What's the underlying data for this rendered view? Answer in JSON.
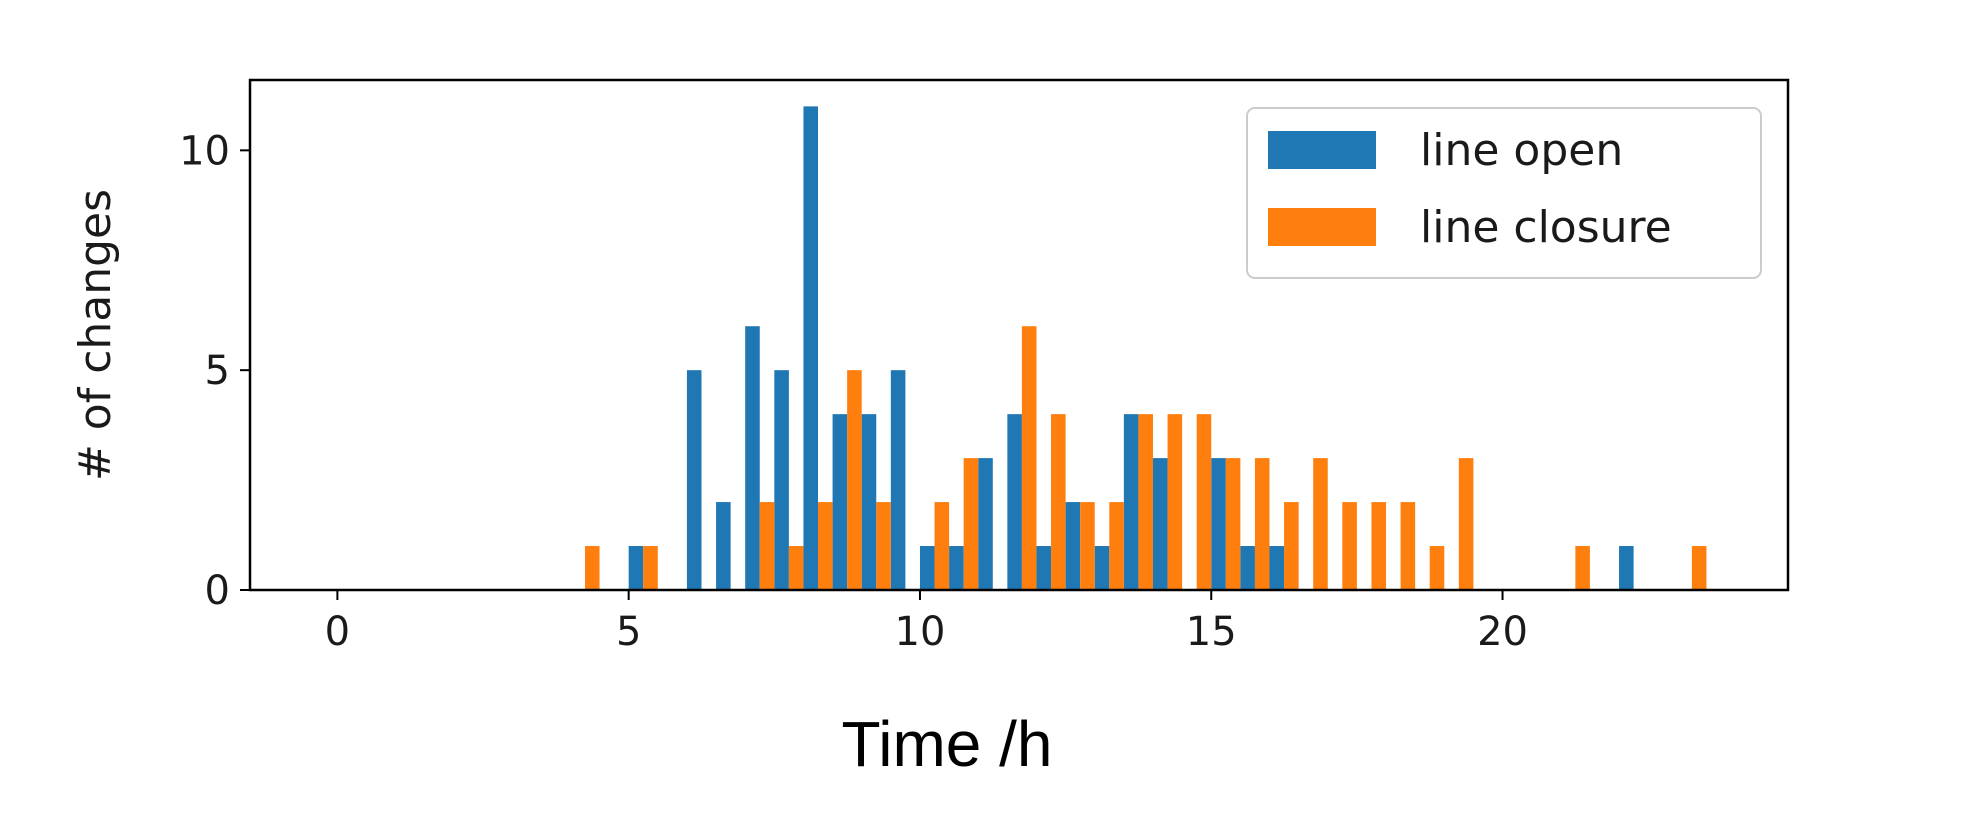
{
  "chart_data": {
    "type": "bar",
    "title": "",
    "xlabel": "Time /h",
    "ylabel": "# of changes",
    "xlim": [
      -1.5,
      24.9
    ],
    "ylim": [
      0,
      11.6
    ],
    "xticks": [
      0,
      5,
      10,
      15,
      20
    ],
    "yticks": [
      0,
      5,
      10
    ],
    "bin_width": 0.5,
    "grid": false,
    "legend_position": "top-right",
    "series": [
      {
        "name": "line open",
        "color": "#1f77b4",
        "x": [
          5.0,
          6.0,
          6.5,
          7.0,
          7.5,
          8.0,
          8.5,
          9.0,
          9.5,
          10.0,
          10.5,
          11.0,
          11.5,
          12.0,
          12.5,
          13.0,
          13.5,
          14.0,
          15.0,
          15.5,
          16.0,
          22.0
        ],
        "values": [
          1,
          5,
          2,
          6,
          5,
          11,
          4,
          4,
          5,
          1,
          1,
          3,
          4,
          1,
          2,
          1,
          4,
          3,
          3,
          1,
          1,
          1
        ]
      },
      {
        "name": "line closure",
        "color": "#ff7f0e",
        "x": [
          4.0,
          5.0,
          7.0,
          7.5,
          8.0,
          8.5,
          9.0,
          10.0,
          10.5,
          11.5,
          12.0,
          12.5,
          13.0,
          13.5,
          14.0,
          14.5,
          15.0,
          15.5,
          16.0,
          16.5,
          17.0,
          17.5,
          18.0,
          18.5,
          19.0,
          21.0,
          23.0
        ],
        "values": [
          1,
          1,
          2,
          1,
          2,
          5,
          2,
          2,
          3,
          6,
          4,
          2,
          2,
          4,
          4,
          4,
          3,
          3,
          2,
          3,
          2,
          2,
          2,
          1,
          3,
          1,
          1
        ]
      }
    ]
  }
}
